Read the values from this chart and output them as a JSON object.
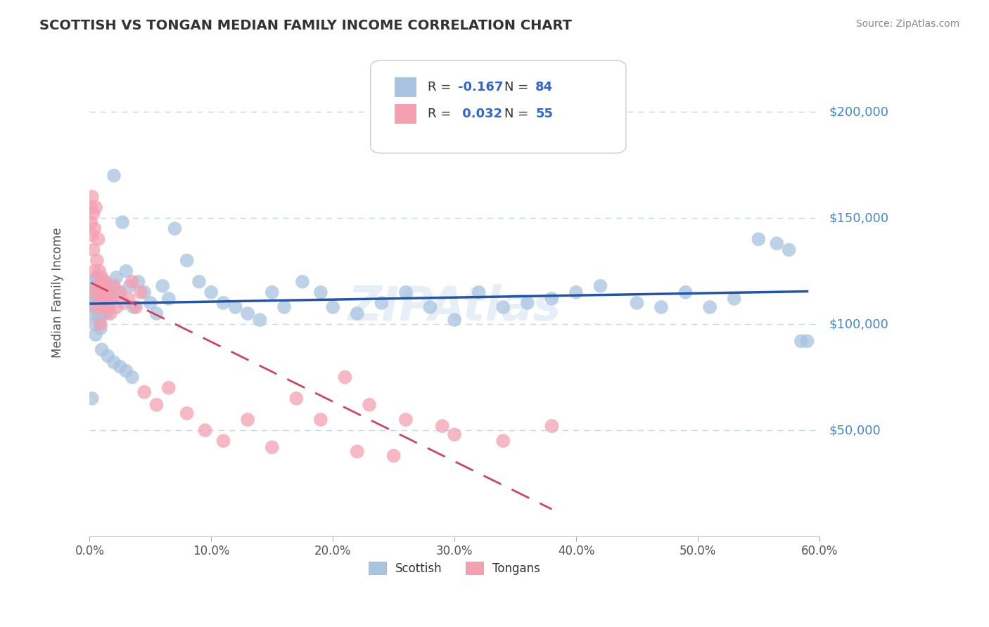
{
  "title": "SCOTTISH VS TONGAN MEDIAN FAMILY INCOME CORRELATION CHART",
  "source": "Source: ZipAtlas.com",
  "ylabel": "Median Family Income",
  "xlim": [
    0.0,
    0.6
  ],
  "ylim": [
    0,
    230000
  ],
  "xtick_labels": [
    "0.0%",
    "10.0%",
    "20.0%",
    "30.0%",
    "40.0%",
    "50.0%",
    "60.0%"
  ],
  "xticks": [
    0.0,
    0.1,
    0.2,
    0.3,
    0.4,
    0.5,
    0.6
  ],
  "scottish_color": "#a8c4e0",
  "tongan_color": "#f4a0b0",
  "scottish_line_color": "#2255aa",
  "tongan_line_color": "#cc4466",
  "R_scottish": -0.167,
  "N_scottish": 84,
  "R_tongan": 0.032,
  "N_tongan": 55,
  "background_color": "#ffffff",
  "grid_color": "#c0d8f0",
  "title_color": "#333333",
  "axis_label_color": "#4488cc",
  "legend_label_color": "#3366cc",
  "scottish_x": [
    0.001,
    0.002,
    0.002,
    0.003,
    0.003,
    0.004,
    0.004,
    0.005,
    0.005,
    0.006,
    0.006,
    0.007,
    0.007,
    0.008,
    0.008,
    0.009,
    0.009,
    0.01,
    0.01,
    0.011,
    0.011,
    0.012,
    0.012,
    0.013,
    0.014,
    0.015,
    0.016,
    0.017,
    0.018,
    0.019,
    0.02,
    0.022,
    0.025,
    0.027,
    0.03,
    0.033,
    0.036,
    0.04,
    0.045,
    0.05,
    0.055,
    0.06,
    0.065,
    0.07,
    0.08,
    0.09,
    0.1,
    0.11,
    0.12,
    0.13,
    0.14,
    0.15,
    0.16,
    0.175,
    0.19,
    0.2,
    0.22,
    0.24,
    0.26,
    0.28,
    0.3,
    0.32,
    0.34,
    0.36,
    0.38,
    0.4,
    0.42,
    0.45,
    0.47,
    0.49,
    0.51,
    0.53,
    0.55,
    0.565,
    0.575,
    0.585,
    0.01,
    0.015,
    0.02,
    0.025,
    0.03,
    0.035,
    0.002,
    0.59
  ],
  "scottish_y": [
    110000,
    115000,
    105000,
    108000,
    120000,
    112000,
    100000,
    118000,
    95000,
    122000,
    108000,
    105000,
    115000,
    102000,
    118000,
    108000,
    98000,
    115000,
    110000,
    105000,
    120000,
    112000,
    108000,
    115000,
    105000,
    110000,
    108000,
    115000,
    112000,
    118000,
    170000,
    122000,
    115000,
    148000,
    125000,
    118000,
    108000,
    120000,
    115000,
    110000,
    105000,
    118000,
    112000,
    145000,
    130000,
    120000,
    115000,
    110000,
    108000,
    105000,
    102000,
    115000,
    108000,
    120000,
    115000,
    108000,
    105000,
    110000,
    115000,
    108000,
    102000,
    115000,
    108000,
    110000,
    112000,
    115000,
    118000,
    110000,
    108000,
    115000,
    108000,
    112000,
    140000,
    138000,
    135000,
    92000,
    88000,
    85000,
    82000,
    80000,
    78000,
    75000,
    65000,
    92000
  ],
  "tongan_x": [
    0.001,
    0.001,
    0.002,
    0.002,
    0.003,
    0.003,
    0.004,
    0.004,
    0.005,
    0.005,
    0.006,
    0.006,
    0.007,
    0.007,
    0.008,
    0.008,
    0.009,
    0.009,
    0.01,
    0.01,
    0.011,
    0.012,
    0.013,
    0.014,
    0.015,
    0.016,
    0.017,
    0.018,
    0.02,
    0.022,
    0.025,
    0.028,
    0.032,
    0.038,
    0.045,
    0.055,
    0.065,
    0.08,
    0.095,
    0.11,
    0.13,
    0.15,
    0.17,
    0.19,
    0.21,
    0.23,
    0.26,
    0.3,
    0.34,
    0.38,
    0.25,
    0.22,
    0.29,
    0.035,
    0.042
  ],
  "tongan_y": [
    155000,
    148000,
    160000,
    142000,
    152000,
    135000,
    145000,
    125000,
    155000,
    115000,
    130000,
    108000,
    140000,
    118000,
    112000,
    125000,
    100000,
    118000,
    108000,
    122000,
    112000,
    115000,
    120000,
    108000,
    115000,
    110000,
    105000,
    112000,
    118000,
    108000,
    115000,
    110000,
    112000,
    108000,
    68000,
    62000,
    70000,
    58000,
    50000,
    45000,
    55000,
    42000,
    65000,
    55000,
    75000,
    62000,
    55000,
    48000,
    45000,
    52000,
    38000,
    40000,
    52000,
    120000,
    115000
  ]
}
